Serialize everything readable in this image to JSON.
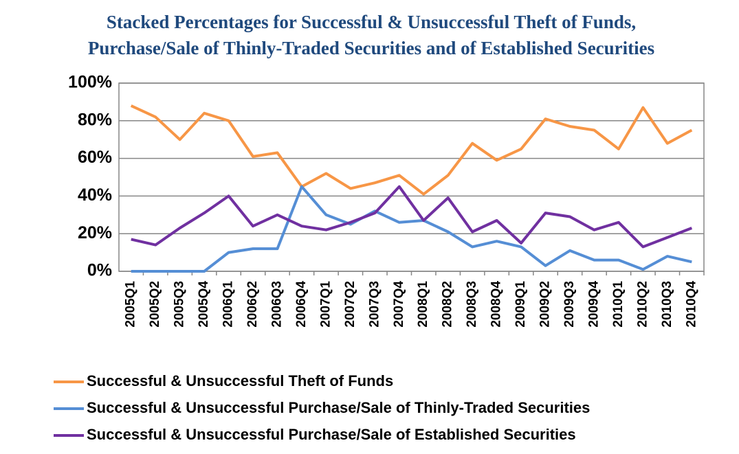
{
  "chart_data": {
    "type": "line",
    "title": "Stacked Percentages for Successful & Unsuccessful Theft of Funds,",
    "subtitle": "Purchase/Sale of Thinly-Traded Securities and of Established Securities",
    "categories": [
      "2005Q1",
      "2005Q2",
      "2005Q3",
      "2005Q4",
      "2006Q1",
      "2006Q2",
      "2006Q3",
      "2006Q4",
      "2007Q1",
      "2007Q2",
      "2007Q3",
      "2007Q4",
      "2008Q1",
      "2008Q2",
      "2008Q3",
      "2008Q4",
      "2009Q1",
      "2009Q2",
      "2009Q3",
      "2009Q4",
      "2010Q1",
      "2010Q2",
      "2010Q3",
      "2010Q4"
    ],
    "series": [
      {
        "name": "Successful & Unsuccessful Theft of Funds",
        "color": "#f79646",
        "values": [
          88,
          82,
          70,
          84,
          80,
          61,
          63,
          45,
          52,
          44,
          47,
          51,
          41,
          51,
          68,
          59,
          65,
          81,
          77,
          75,
          65,
          87,
          68,
          75
        ]
      },
      {
        "name": "Successful & Unsuccessful Purchase/Sale of Thinly-Traded Securities",
        "color": "#558ed5",
        "values": [
          0,
          0,
          0,
          0,
          10,
          12,
          12,
          45,
          30,
          25,
          32,
          26,
          27,
          21,
          13,
          16,
          13,
          3,
          11,
          6,
          6,
          1,
          8,
          5
        ]
      },
      {
        "name": "Successful & Unsuccessful Purchase/Sale of Established Securities",
        "color": "#7030a0",
        "values": [
          17,
          14,
          23,
          31,
          40,
          24,
          30,
          24,
          22,
          26,
          31,
          45,
          27,
          39,
          21,
          27,
          15,
          31,
          29,
          22,
          26,
          13,
          18,
          23
        ]
      }
    ],
    "ylim": [
      0,
      100
    ],
    "yticks": [
      {
        "value": 0,
        "label": "0%"
      },
      {
        "value": 20,
        "label": "20%"
      },
      {
        "value": 40,
        "label": "40%"
      },
      {
        "value": 60,
        "label": "60%"
      },
      {
        "value": 80,
        "label": "80%"
      },
      {
        "value": 100,
        "label": "100%"
      }
    ],
    "grid": true
  }
}
